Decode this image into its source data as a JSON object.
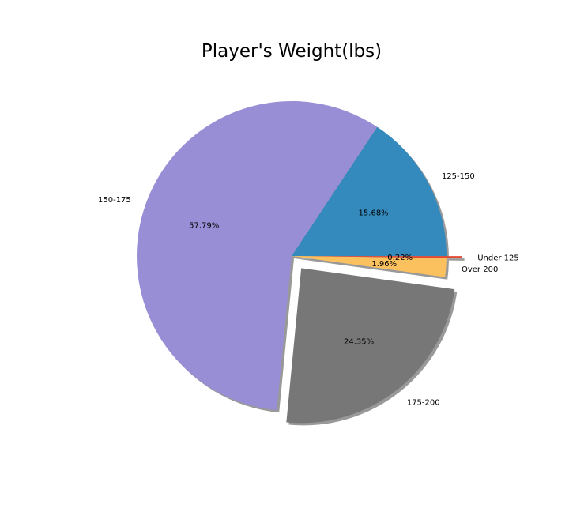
{
  "chart_data": {
    "type": "pie",
    "title": "Player's Weight(lbs)",
    "slices": [
      {
        "label": "125-150",
        "value": 15.68,
        "pct_text": "15.68%",
        "color": "#348abd",
        "explode": 0
      },
      {
        "label": "150-175",
        "value": 57.79,
        "pct_text": "57.79%",
        "color": "#988ed5",
        "explode": 0
      },
      {
        "label": "175-200",
        "value": 24.35,
        "pct_text": "24.35%",
        "color": "#777777",
        "explode": 0.1
      },
      {
        "label": "Over 200",
        "value": 1.96,
        "pct_text": "1.96%",
        "color": "#fbc15e",
        "explode": 0
      },
      {
        "label": "Under 125",
        "value": 0.22,
        "pct_text": "0.22%",
        "color": "#e24a33",
        "explode": 0.1
      }
    ],
    "start_angle_deg": 0,
    "direction": "counterclockwise",
    "shadow": true
  }
}
